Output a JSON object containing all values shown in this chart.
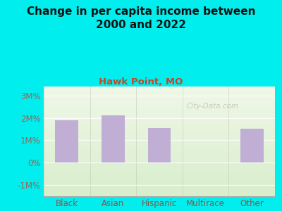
{
  "title": "Change in per capita income between\n2000 and 2022",
  "subtitle": "Hawk Point, MO",
  "categories": [
    "Black",
    "Asian",
    "Hispanic",
    "Multirace",
    "Other"
  ],
  "values": [
    1.9,
    2.1,
    1.55,
    0.0,
    1.5
  ],
  "bar_color": "#c0aed4",
  "background_color": "#00eeee",
  "plot_bg_color": "#e8f2e0",
  "title_color": "#111111",
  "subtitle_color": "#cc4422",
  "tick_color": "#996655",
  "xlabel_color": "#885544",
  "ytick_labels": [
    "-1M%",
    "0%",
    "1M%",
    "2M%",
    "3M%"
  ],
  "ytick_values": [
    -1,
    0,
    1,
    2,
    3
  ],
  "ylim": [
    -1.5,
    3.4
  ],
  "xlim": [
    -0.5,
    4.5
  ],
  "watermark": "City-Data.com",
  "title_fontsize": 11,
  "subtitle_fontsize": 9.5,
  "tick_fontsize": 8.5,
  "bar_width": 0.5
}
